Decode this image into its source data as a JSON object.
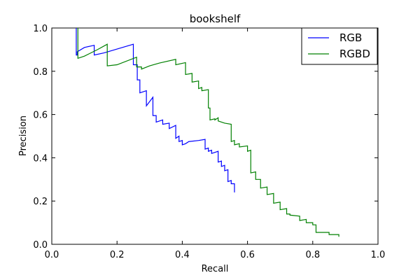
{
  "chart_data": {
    "type": "line",
    "title": "bookshelf",
    "xlabel": "Recall",
    "ylabel": "Precision",
    "xlim": [
      0.0,
      1.0
    ],
    "ylim": [
      0.0,
      1.0
    ],
    "xticks": [
      "0.0",
      "0.2",
      "0.4",
      "0.6",
      "0.8",
      "1.0"
    ],
    "yticks": [
      "0.0",
      "0.2",
      "0.4",
      "0.6",
      "0.8",
      "1.0"
    ],
    "grid": false,
    "legend_position": "top-right",
    "series": [
      {
        "name": "RGB",
        "color": "#0000ff",
        "points": [
          [
            0.075,
            1.0
          ],
          [
            0.075,
            0.875
          ],
          [
            0.078,
            0.875
          ],
          [
            0.078,
            0.89
          ],
          [
            0.1,
            0.91
          ],
          [
            0.13,
            0.92
          ],
          [
            0.13,
            0.875
          ],
          [
            0.16,
            0.885
          ],
          [
            0.25,
            0.925
          ],
          [
            0.25,
            0.83
          ],
          [
            0.262,
            0.83
          ],
          [
            0.262,
            0.76
          ],
          [
            0.27,
            0.76
          ],
          [
            0.27,
            0.7
          ],
          [
            0.29,
            0.71
          ],
          [
            0.29,
            0.64
          ],
          [
            0.31,
            0.68
          ],
          [
            0.31,
            0.595
          ],
          [
            0.32,
            0.595
          ],
          [
            0.32,
            0.565
          ],
          [
            0.34,
            0.575
          ],
          [
            0.34,
            0.555
          ],
          [
            0.36,
            0.56
          ],
          [
            0.36,
            0.535
          ],
          [
            0.38,
            0.55
          ],
          [
            0.38,
            0.49
          ],
          [
            0.39,
            0.5
          ],
          [
            0.39,
            0.475
          ],
          [
            0.4,
            0.48
          ],
          [
            0.4,
            0.46
          ],
          [
            0.41,
            0.465
          ],
          [
            0.42,
            0.475
          ],
          [
            0.45,
            0.48
          ],
          [
            0.47,
            0.485
          ],
          [
            0.47,
            0.44
          ],
          [
            0.48,
            0.445
          ],
          [
            0.48,
            0.43
          ],
          [
            0.49,
            0.435
          ],
          [
            0.49,
            0.42
          ],
          [
            0.5,
            0.425
          ],
          [
            0.51,
            0.43
          ],
          [
            0.51,
            0.38
          ],
          [
            0.52,
            0.385
          ],
          [
            0.52,
            0.36
          ],
          [
            0.53,
            0.365
          ],
          [
            0.53,
            0.34
          ],
          [
            0.54,
            0.345
          ],
          [
            0.54,
            0.29
          ],
          [
            0.55,
            0.295
          ],
          [
            0.55,
            0.28
          ],
          [
            0.56,
            0.28
          ],
          [
            0.56,
            0.24
          ]
        ]
      },
      {
        "name": "RGBD",
        "color": "#008000",
        "points": [
          [
            0.08,
            1.0
          ],
          [
            0.08,
            0.86
          ],
          [
            0.1,
            0.87
          ],
          [
            0.14,
            0.9
          ],
          [
            0.17,
            0.925
          ],
          [
            0.17,
            0.825
          ],
          [
            0.2,
            0.83
          ],
          [
            0.26,
            0.865
          ],
          [
            0.26,
            0.82
          ],
          [
            0.275,
            0.82
          ],
          [
            0.275,
            0.81
          ],
          [
            0.3,
            0.825
          ],
          [
            0.33,
            0.838
          ],
          [
            0.38,
            0.855
          ],
          [
            0.38,
            0.83
          ],
          [
            0.41,
            0.84
          ],
          [
            0.41,
            0.785
          ],
          [
            0.43,
            0.79
          ],
          [
            0.43,
            0.75
          ],
          [
            0.45,
            0.755
          ],
          [
            0.45,
            0.72
          ],
          [
            0.46,
            0.725
          ],
          [
            0.46,
            0.71
          ],
          [
            0.48,
            0.715
          ],
          [
            0.48,
            0.63
          ],
          [
            0.485,
            0.63
          ],
          [
            0.485,
            0.575
          ],
          [
            0.5,
            0.58
          ],
          [
            0.5,
            0.575
          ],
          [
            0.51,
            0.585
          ],
          [
            0.51,
            0.57
          ],
          [
            0.53,
            0.56
          ],
          [
            0.55,
            0.555
          ],
          [
            0.55,
            0.475
          ],
          [
            0.56,
            0.48
          ],
          [
            0.56,
            0.46
          ],
          [
            0.575,
            0.465
          ],
          [
            0.575,
            0.45
          ],
          [
            0.6,
            0.455
          ],
          [
            0.6,
            0.43
          ],
          [
            0.61,
            0.435
          ],
          [
            0.61,
            0.33
          ],
          [
            0.625,
            0.335
          ],
          [
            0.625,
            0.3
          ],
          [
            0.64,
            0.3
          ],
          [
            0.64,
            0.26
          ],
          [
            0.66,
            0.265
          ],
          [
            0.66,
            0.23
          ],
          [
            0.68,
            0.235
          ],
          [
            0.68,
            0.19
          ],
          [
            0.7,
            0.195
          ],
          [
            0.7,
            0.16
          ],
          [
            0.72,
            0.165
          ],
          [
            0.72,
            0.14
          ],
          [
            0.73,
            0.14
          ],
          [
            0.73,
            0.135
          ],
          [
            0.76,
            0.13
          ],
          [
            0.76,
            0.11
          ],
          [
            0.78,
            0.115
          ],
          [
            0.78,
            0.1
          ],
          [
            0.8,
            0.1
          ],
          [
            0.8,
            0.09
          ],
          [
            0.81,
            0.09
          ],
          [
            0.81,
            0.055
          ],
          [
            0.85,
            0.055
          ],
          [
            0.85,
            0.045
          ],
          [
            0.88,
            0.045
          ],
          [
            0.88,
            0.035
          ]
        ]
      }
    ]
  }
}
